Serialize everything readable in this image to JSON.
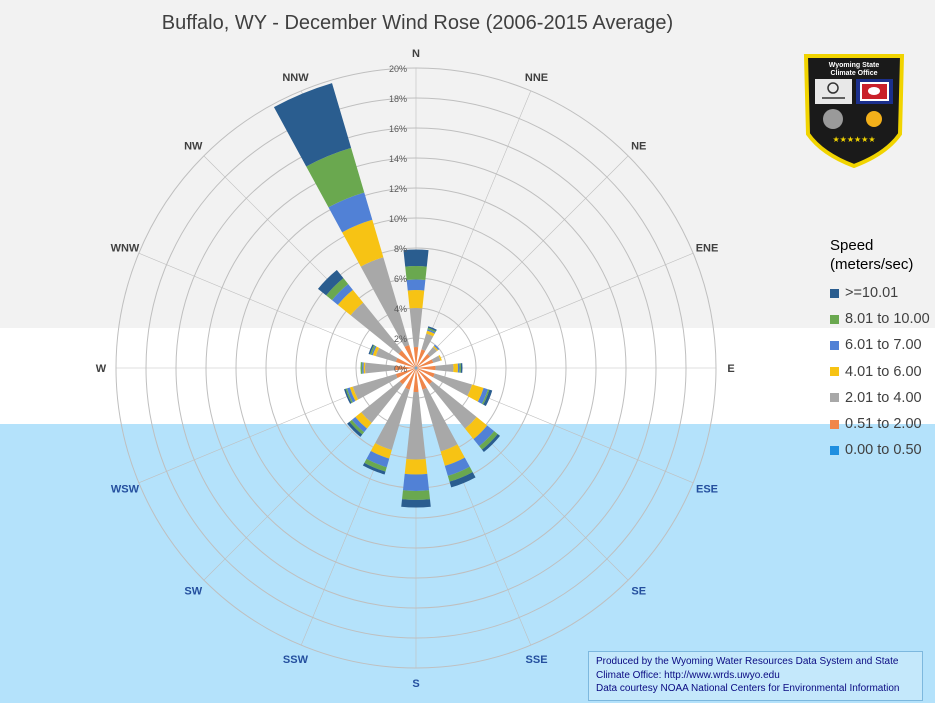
{
  "title": "Buffalo, WY - December Wind Rose (2006-2015 Average)",
  "logo": {
    "text_line1": "Wyoming State",
    "text_line2": "Climate Office"
  },
  "legend": {
    "title_line1": "Speed",
    "title_line2": "(meters/sec)"
  },
  "credits": {
    "line1": "Produced by the Wyoming Water Resources Data System and State",
    "line2": "Climate Office: http://www.wrds.uwyo.edu",
    "line3": "Data courtesy NOAA National Centers for Environmental Information"
  },
  "colors": {
    "band_top": "#f2f2f2",
    "band_mid": "#ffffff",
    "band_bottom": "#b4e2fb",
    "grid": "#bfbfbf"
  },
  "chart_data": {
    "type": "stacked-radar",
    "title": "Buffalo, WY - December Wind Rose (2006-2015 Average)",
    "directions": [
      "N",
      "NNE",
      "NE",
      "ENE",
      "E",
      "ESE",
      "SE",
      "SSE",
      "S",
      "SSW",
      "SW",
      "WSW",
      "W",
      "WNW",
      "NW",
      "NNW"
    ],
    "radial_ticks": [
      "0%",
      "2%",
      "4%",
      "6%",
      "8%",
      "10%",
      "12%",
      "14%",
      "16%",
      "18%",
      "20%"
    ],
    "rmax": 20,
    "series": [
      {
        "name": "0.00 to 0.50",
        "color": "#1f8fe0",
        "values": [
          0.1,
          0.1,
          0.1,
          0.1,
          0.1,
          0.1,
          0.1,
          0.1,
          0.1,
          0.1,
          0.1,
          0.1,
          0.1,
          0.1,
          0.1,
          0.1
        ]
      },
      {
        "name": "0.51 to 2.00",
        "color": "#f0864a",
        "values": [
          1.3,
          1.2,
          1.1,
          1.1,
          1.2,
          1.2,
          1.3,
          1.4,
          1.5,
          1.4,
          1.3,
          1.3,
          1.3,
          1.3,
          1.4,
          1.5
        ]
      },
      {
        "name": "2.01 to 4.00",
        "color": "#a8a8a8",
        "values": [
          2.6,
          1.1,
          0.6,
          0.5,
          1.2,
          2.6,
          3.8,
          4.3,
          4.5,
          4.2,
          3.3,
          3.0,
          2.0,
          1.4,
          4.1,
          6.1
        ]
      },
      {
        "name": "4.01 to 6.00",
        "color": "#f7c314",
        "values": [
          1.2,
          0.2,
          0.1,
          0.1,
          0.3,
          0.8,
          0.9,
          1.0,
          1.0,
          0.6,
          0.5,
          0.2,
          0.1,
          0.2,
          1.1,
          2.6
        ]
      },
      {
        "name": "6.01 to 7.00",
        "color": "#5181d6",
        "values": [
          0.7,
          0.1,
          0.1,
          0.0,
          0.1,
          0.3,
          0.6,
          0.7,
          1.1,
          0.6,
          0.3,
          0.2,
          0.1,
          0.1,
          0.5,
          1.9
        ]
      },
      {
        "name": "8.01 to 10.00",
        "color": "#6aa84f",
        "values": [
          0.9,
          0.1,
          0.0,
          0.0,
          0.1,
          0.1,
          0.3,
          0.4,
          0.6,
          0.3,
          0.2,
          0.1,
          0.1,
          0.1,
          0.5,
          3.1
        ]
      },
      {
        "name": ">=10.01",
        "color": "#2a5d8f",
        "values": [
          1.1,
          0.1,
          0.0,
          0.0,
          0.1,
          0.2,
          0.2,
          0.4,
          0.5,
          0.2,
          0.2,
          0.1,
          0.0,
          0.1,
          0.7,
          4.5
        ]
      }
    ],
    "legend_order": [
      ">=10.01",
      "8.01 to 10.00",
      "6.01 to 7.00",
      "4.01 to 6.00",
      "2.01 to 4.00",
      "0.51 to 2.00",
      "0.00 to 0.50"
    ],
    "legend_position": "right",
    "grid": true
  }
}
